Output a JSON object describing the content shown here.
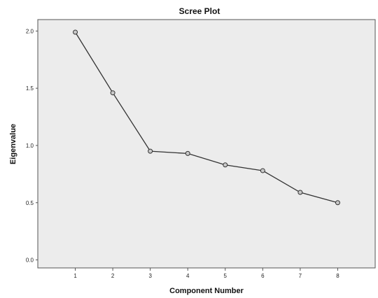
{
  "chart_data": {
    "type": "line",
    "title": "Scree Plot",
    "xlabel": "Component Number",
    "ylabel": "Eigenvalue",
    "x": [
      1,
      2,
      3,
      4,
      5,
      6,
      7,
      8
    ],
    "series": [
      {
        "values": [
          1.99,
          1.46,
          0.95,
          0.93,
          0.83,
          0.78,
          0.59,
          0.5
        ]
      }
    ],
    "x_ticks": [
      "1",
      "2",
      "3",
      "4",
      "5",
      "6",
      "7",
      "8"
    ],
    "y_ticks": [
      "0.0",
      "0.5",
      "1.0",
      "1.5",
      "2.0"
    ],
    "xlim": [
      0,
      9
    ],
    "ylim": [
      -0.07,
      2.1
    ],
    "grid": false,
    "colors": {
      "plot_bg": "#ececec",
      "line": "#333333",
      "marker_fill": "#c8c8c8"
    }
  }
}
